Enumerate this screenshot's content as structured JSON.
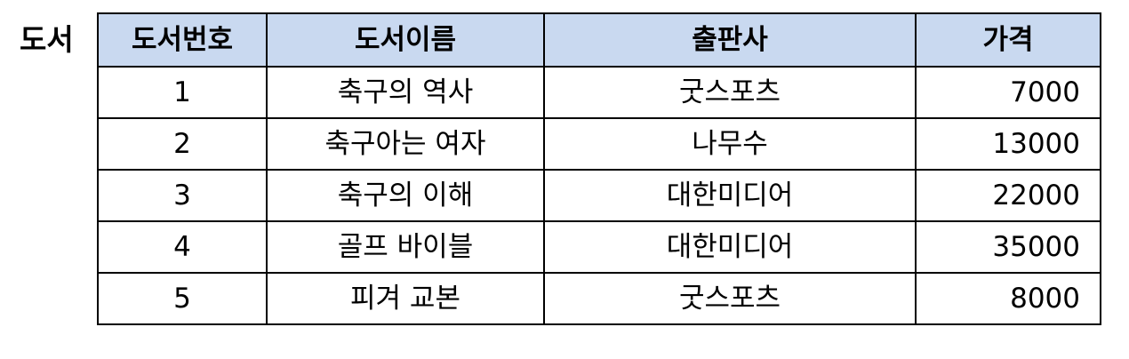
{
  "title": "도서",
  "table": {
    "headers": [
      "도서번호",
      "도서이름",
      "출판사",
      "가격"
    ],
    "rows": [
      [
        "1",
        "축구의 역사",
        "굿스포츠",
        "7000"
      ],
      [
        "2",
        "축구아는 여자",
        "나무수",
        "13000"
      ],
      [
        "3",
        "축구의 이해",
        "대한미디어",
        "22000"
      ],
      [
        "4",
        "골프 바이블",
        "대한미디어",
        "35000"
      ],
      [
        "5",
        "피겨 교본",
        "굿스포츠",
        "8000"
      ]
    ]
  },
  "colors": {
    "header_background": "#c9d9f0",
    "border": "#000000"
  }
}
